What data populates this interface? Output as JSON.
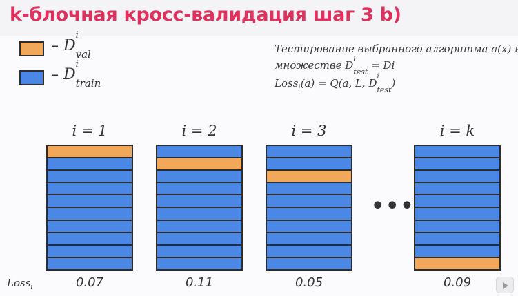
{
  "title": "k-блочная кросс-валидация шаг 3 b)",
  "legend": [
    {
      "color": "#f2a85a",
      "label": "– D",
      "sup": "i",
      "sub": "val"
    },
    {
      "color": "#4b88e6",
      "label": "– D",
      "sup": "i",
      "sub": "train"
    }
  ],
  "note": {
    "line1": "Тестирование выбранного алгоритма a(x) на",
    "line2": "множестве D",
    "line2_sup": "i",
    "line2_sub": "test",
    "line2_rest": " = Di",
    "line3": "Loss",
    "line3_sub": "i",
    "line3_rest": "(a) = Q(a, L, D",
    "line3_sup2": "i",
    "line3_sub2": "test",
    "line3_end": ")"
  },
  "folds": [
    {
      "label": "i = 1",
      "val_index": 0,
      "loss": "0.07"
    },
    {
      "label": "i = 2",
      "val_index": 1,
      "loss": "0.11"
    },
    {
      "label": "i = 3",
      "val_index": 2,
      "loss": "0.05"
    },
    {
      "label": "i = k",
      "val_index": 9,
      "loss": "0.09"
    }
  ],
  "blocks_per_fold": 10,
  "ellipsis": "•••",
  "loss_row_label": "Loss",
  "loss_row_sub": "i",
  "colors": {
    "title": "#e0315e",
    "train": "#4b88e6",
    "val": "#f2a85a"
  }
}
